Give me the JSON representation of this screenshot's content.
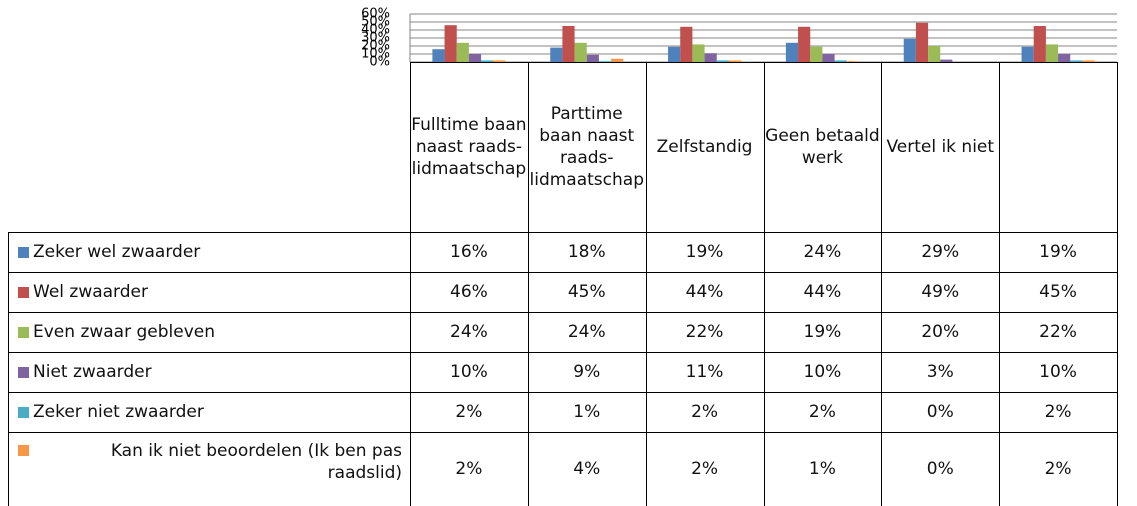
{
  "chart_data": {
    "type": "bar",
    "categories": [
      "Fulltime baan naast raads-lidmaatschap",
      "Parttime baan naast raads-lidmaatschap",
      "Zelfstandig",
      "Geen betaald werk",
      "Vertel ik niet",
      null
    ],
    "ylim": [
      0,
      60
    ],
    "yticks": [
      {
        "value": 0,
        "label": "0%"
      },
      {
        "value": 10,
        "label": "10%"
      },
      {
        "value": 20,
        "label": "20%"
      },
      {
        "value": 30,
        "label": "30%"
      },
      {
        "value": 40,
        "label": "40%"
      },
      {
        "value": 50,
        "label": "50%"
      },
      {
        "value": 60,
        "label": "60%"
      }
    ],
    "grid": true,
    "series": [
      {
        "name": "Zeker wel zwaarder",
        "color": "#4f81bd",
        "values": [
          16,
          18,
          19,
          24,
          29,
          19
        ],
        "value_labels": [
          "16%",
          "18%",
          "19%",
          "24%",
          "29%",
          "19%"
        ]
      },
      {
        "name": "Wel zwaarder",
        "color": "#c0504d",
        "values": [
          46,
          45,
          44,
          44,
          49,
          45
        ],
        "value_labels": [
          "46%",
          "45%",
          "44%",
          "44%",
          "49%",
          "45%"
        ]
      },
      {
        "name": "Even zwaar gebleven",
        "color": "#9bbb59",
        "values": [
          24,
          24,
          22,
          19,
          20,
          22
        ],
        "value_labels": [
          "24%",
          "24%",
          "22%",
          "19%",
          "20%",
          "22%"
        ]
      },
      {
        "name": "Niet zwaarder",
        "color": "#8064a2",
        "values": [
          10,
          9,
          11,
          10,
          3,
          10
        ],
        "value_labels": [
          "10%",
          "9%",
          "11%",
          "10%",
          "3%",
          "10%"
        ]
      },
      {
        "name": "Zeker niet zwaarder",
        "color": "#4bacc6",
        "values": [
          2,
          1,
          2,
          2,
          0,
          2
        ],
        "value_labels": [
          "2%",
          "1%",
          "2%",
          "2%",
          "0%",
          "2%"
        ]
      },
      {
        "name": "Kan ik niet beoordelen (Ik ben pas raadslid)",
        "color": "#f79646",
        "values": [
          2,
          4,
          2,
          1,
          0,
          2
        ],
        "value_labels": [
          "2%",
          "4%",
          "2%",
          "1%",
          "0%",
          "2%"
        ]
      }
    ]
  }
}
